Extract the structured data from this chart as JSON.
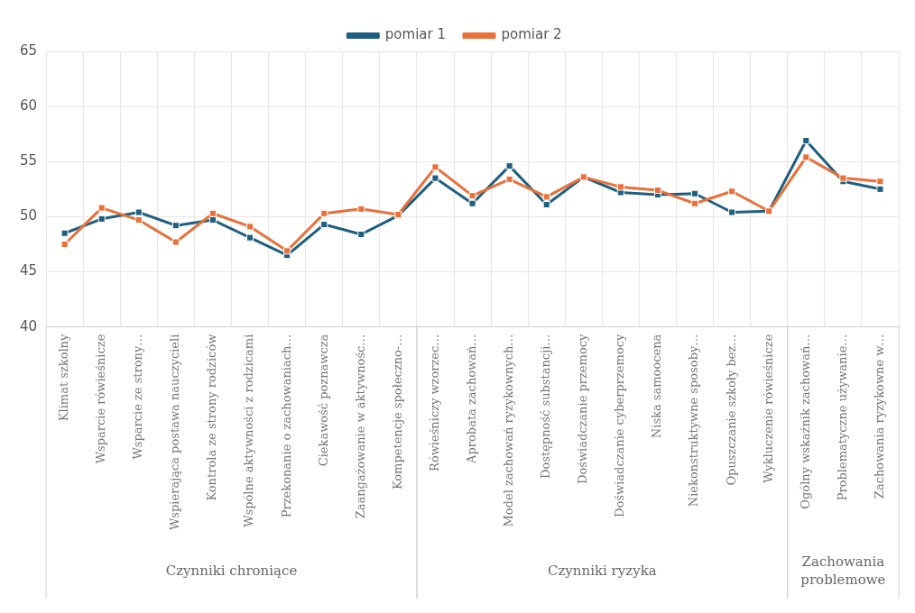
{
  "chart_data": {
    "type": "line",
    "categories": [
      "Klimat szkolny",
      "Wsparcie rówieśnicze",
      "Wsparcie ze strony…",
      "Wspierająca postawa nauczycieli",
      "Kontrola ze strony rodziców",
      "Wspólne aktywności z rodzicami",
      "Przekonanie o zachowaniach…",
      "Ciekawość poznawcza",
      "Zaangażowanie w aktywnośc…",
      "Kompetencje społeczno-…",
      "Rówieśniczy wzorzec…",
      "Aprobata zachowań…",
      "Model zachowań ryzykownych…",
      "Dostępność substancji…",
      "Doświadczanie przemocy",
      "Doświadczanie cyberprzemocy",
      "Niska samoocena",
      "Niekonstruktywne sposoby…",
      "Opuszczanie szkoły bez…",
      "Wykluczenie rówieśnicze",
      "Ogólny wskaźnik zachowań…",
      "Problematyczne używanie…",
      "Zachowania ryzykowne w…"
    ],
    "annotations": [
      "Czynniki chroniące",
      "Czynniki ryzyka",
      "Zachowania\nproblemowe"
    ],
    "series": [
      {
        "name": "pomiar 1",
        "color": "#1f5f7f",
        "values": [
          48.5,
          49.8,
          50.4,
          49.2,
          49.7,
          48.1,
          46.5,
          49.3,
          48.4,
          50.1,
          53.5,
          51.2,
          54.6,
          51.1,
          53.6,
          52.2,
          52.0,
          52.1,
          50.4,
          50.5,
          56.9,
          53.2,
          52.5
        ]
      },
      {
        "name": "pomiar 2",
        "color": "#e8703a",
        "values": [
          47.5,
          50.8,
          49.7,
          47.7,
          50.3,
          49.1,
          46.9,
          50.3,
          50.7,
          50.2,
          54.5,
          51.9,
          53.4,
          51.8,
          53.6,
          52.7,
          52.4,
          51.2,
          52.3,
          50.5,
          55.4,
          53.5,
          53.2
        ]
      }
    ],
    "ylim": [
      40,
      65
    ],
    "yticks": [
      40,
      45,
      50,
      55,
      60,
      65
    ],
    "grid": true,
    "legend": "top",
    "marker": "square",
    "line_style": "solid"
  }
}
